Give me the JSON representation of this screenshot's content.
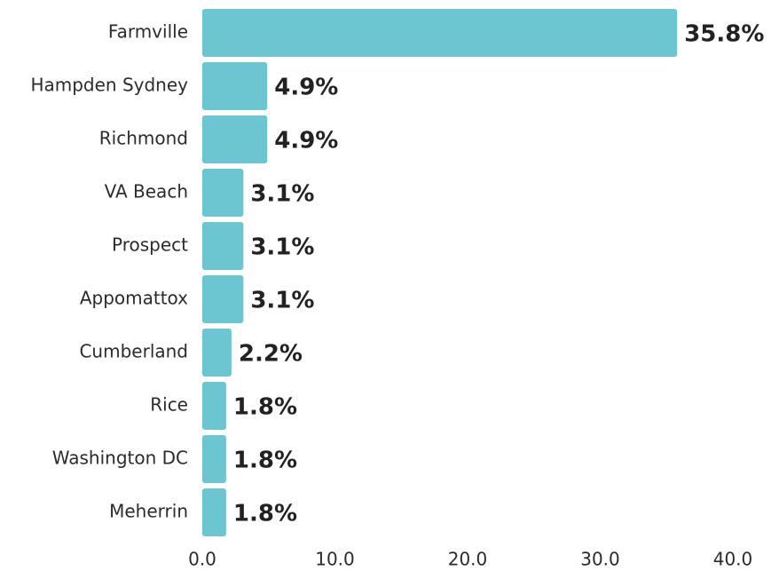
{
  "chart_data": {
    "type": "bar",
    "orientation": "horizontal",
    "categories": [
      "Farmville",
      "Hampden Sydney",
      "Richmond",
      "VA Beach",
      "Prospect",
      "Appomattox",
      "Cumberland",
      "Rice",
      "Washington DC",
      "Meherrin"
    ],
    "values": [
      35.8,
      4.9,
      4.9,
      3.1,
      3.1,
      3.1,
      2.2,
      1.8,
      1.8,
      1.8
    ],
    "value_labels": [
      "35.8%",
      "4.9%",
      "4.9%",
      "3.1%",
      "3.1%",
      "3.1%",
      "2.2%",
      "1.8%",
      "1.8%",
      "1.8%"
    ],
    "color": "#6cc6d2",
    "xlim": [
      0,
      40
    ],
    "xticks": [
      {
        "value": 0,
        "label": "0.0"
      },
      {
        "value": 10,
        "label": "10.0"
      },
      {
        "value": 20,
        "label": "20.0"
      },
      {
        "value": 30,
        "label": "30.0"
      },
      {
        "value": 40,
        "label": "40.0"
      }
    ],
    "grid": false
  }
}
